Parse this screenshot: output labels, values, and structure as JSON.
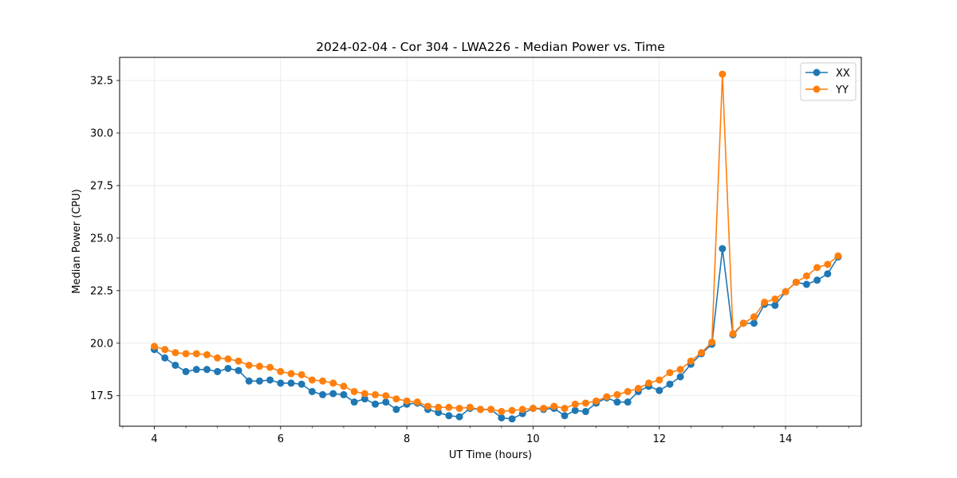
{
  "chart_data": {
    "type": "line",
    "title": "2024-02-04 - Cor 304 - LWA226 - Median Power vs. Time",
    "xlabel": "UT Time (hours)",
    "ylabel": "Median Power (CPU)",
    "xlim": [
      3.45,
      15.2
    ],
    "ylim": [
      16.05,
      33.6
    ],
    "xticks": [
      4,
      6,
      8,
      10,
      12,
      14
    ],
    "xtick_labels": [
      "4",
      "6",
      "8",
      "10",
      "12",
      "14"
    ],
    "xminor_step": 0.5,
    "yticks": [
      17.5,
      20.0,
      22.5,
      25.0,
      27.5,
      30.0,
      32.5
    ],
    "ytick_labels": [
      "17.5",
      "20.0",
      "22.5",
      "25.0",
      "27.5",
      "30.0",
      "32.5"
    ],
    "grid": true,
    "legend_position": "top-right",
    "x": [
      4.0,
      4.167,
      4.333,
      4.5,
      4.667,
      4.833,
      5.0,
      5.167,
      5.333,
      5.5,
      5.667,
      5.833,
      6.0,
      6.167,
      6.333,
      6.5,
      6.667,
      6.833,
      7.0,
      7.167,
      7.333,
      7.5,
      7.667,
      7.833,
      8.0,
      8.167,
      8.333,
      8.5,
      8.667,
      8.833,
      9.0,
      9.167,
      9.333,
      9.5,
      9.667,
      9.833,
      10.0,
      10.167,
      10.333,
      10.5,
      10.667,
      10.833,
      11.0,
      11.167,
      11.333,
      11.5,
      11.667,
      11.833,
      12.0,
      12.167,
      12.333,
      12.5,
      12.667,
      12.833,
      13.0,
      13.167,
      13.333,
      13.5,
      13.667,
      13.833,
      14.0,
      14.167,
      14.333,
      14.5,
      14.667,
      14.833
    ],
    "series": [
      {
        "name": "XX",
        "color": "#1f77b4",
        "values": [
          19.7,
          19.3,
          18.95,
          18.65,
          18.75,
          18.75,
          18.65,
          18.8,
          18.7,
          18.2,
          18.2,
          18.25,
          18.1,
          18.1,
          18.05,
          17.7,
          17.55,
          17.6,
          17.55,
          17.2,
          17.35,
          17.1,
          17.2,
          16.85,
          17.1,
          17.15,
          16.85,
          16.7,
          16.55,
          16.5,
          16.9,
          16.85,
          16.85,
          16.45,
          16.4,
          16.65,
          16.9,
          16.85,
          16.9,
          16.55,
          16.8,
          16.75,
          17.15,
          17.4,
          17.2,
          17.2,
          17.7,
          17.95,
          17.75,
          18.05,
          18.4,
          19.0,
          19.5,
          19.95,
          24.5,
          20.4,
          20.95,
          20.95,
          21.85,
          21.8,
          22.45,
          22.9,
          22.8,
          23.0,
          23.3,
          24.1
        ]
      },
      {
        "name": "YY",
        "color": "#ff7f0e",
        "values": [
          19.85,
          19.7,
          19.55,
          19.5,
          19.5,
          19.45,
          19.3,
          19.25,
          19.15,
          18.95,
          18.9,
          18.85,
          18.65,
          18.55,
          18.5,
          18.25,
          18.2,
          18.1,
          17.95,
          17.7,
          17.6,
          17.55,
          17.5,
          17.35,
          17.25,
          17.2,
          17.0,
          16.95,
          16.95,
          16.9,
          16.95,
          16.85,
          16.85,
          16.75,
          16.8,
          16.85,
          16.9,
          16.9,
          17.0,
          16.9,
          17.1,
          17.15,
          17.25,
          17.45,
          17.55,
          17.7,
          17.85,
          18.1,
          18.25,
          18.6,
          18.75,
          19.15,
          19.55,
          20.05,
          32.8,
          20.45,
          20.95,
          21.25,
          21.95,
          22.1,
          22.45,
          22.9,
          23.2,
          23.6,
          23.75,
          24.15
        ]
      }
    ]
  }
}
